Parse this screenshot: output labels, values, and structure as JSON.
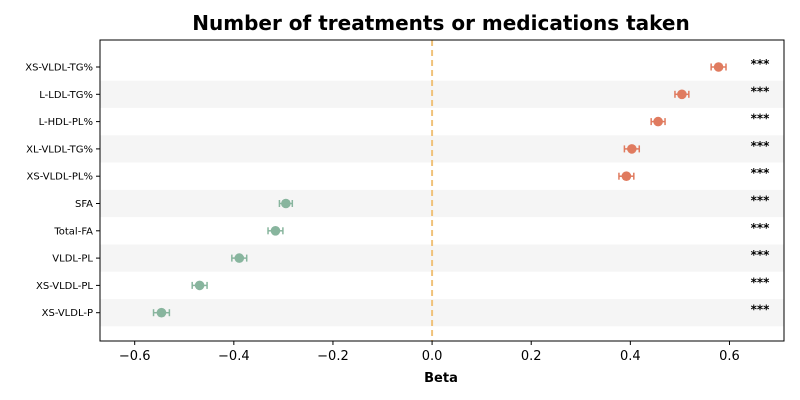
{
  "chart_data": {
    "type": "scatter",
    "title": "Number of treatments or medications taken",
    "xlabel": "Beta",
    "ylabel": "",
    "xlim": [
      -0.67,
      0.71
    ],
    "xticks": [
      -0.6,
      -0.4,
      -0.2,
      0.0,
      0.2,
      0.4,
      0.6
    ],
    "xtick_labels": [
      "−0.6",
      "−0.4",
      "−0.2",
      "0.0",
      "0.2",
      "0.4",
      "0.6"
    ],
    "grid": false,
    "reference_line": {
      "x": 0.0,
      "style": "dashed",
      "color": "#f0c27a"
    },
    "colors": {
      "positive": "#e07b5f",
      "negative": "#88b59e",
      "band": "#f5f5f5",
      "axis": "#000000"
    },
    "categories": [
      "XS-VLDL-TG%",
      "L-LDL-TG%",
      "L-HDL-PL%",
      "XL-VLDL-TG%",
      "XS-VLDL-PL%",
      "SFA",
      "Total-FA",
      "VLDL-PL",
      "XS-VLDL-PL",
      "XS-VLDL-P"
    ],
    "values": [
      0.578,
      0.504,
      0.456,
      0.403,
      0.392,
      -0.295,
      -0.316,
      -0.389,
      -0.469,
      -0.546
    ],
    "ci_low": [
      0.563,
      0.49,
      0.442,
      0.388,
      0.377,
      -0.308,
      -0.331,
      -0.404,
      -0.484,
      -0.562
    ],
    "ci_high": [
      0.593,
      0.518,
      0.47,
      0.418,
      0.407,
      -0.282,
      -0.301,
      -0.374,
      -0.454,
      -0.53
    ],
    "significance": [
      "***",
      "***",
      "***",
      "***",
      "***",
      "***",
      "***",
      "***",
      "***",
      "***"
    ]
  }
}
